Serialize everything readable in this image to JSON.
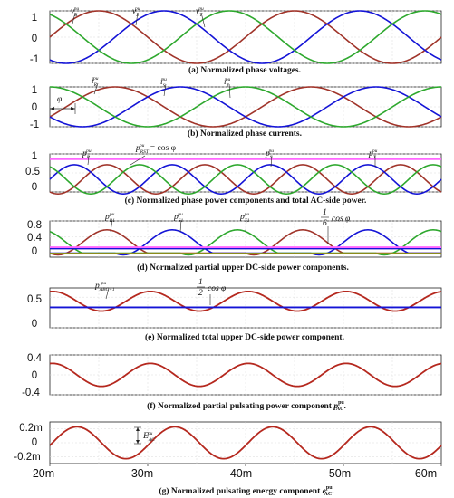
{
  "colors": {
    "red": "#a0342a",
    "blue": "#1414d6",
    "green": "#2ea82e",
    "magenta": "#ff66ff",
    "olive": "#8c8c1a",
    "pulse": "#b5281e"
  },
  "chart_data": [
    {
      "id": "a",
      "type": "line",
      "caption": "(a) Normalized phase voltages.",
      "ylim": [
        -1,
        1
      ],
      "yticks": [
        "1",
        "0",
        "-1"
      ],
      "ytick_values": [
        1,
        0,
        -1
      ],
      "xlim": [
        0.02,
        0.06
      ],
      "series": [
        {
          "name": "v_R^pu",
          "color": "#a0342a",
          "amplitude": 1,
          "phase_deg": 0
        },
        {
          "name": "v_S^pu",
          "color": "#1414d6",
          "amplitude": 1,
          "phase_deg": -120
        },
        {
          "name": "v_T^pu",
          "color": "#2ea82e",
          "amplitude": 1,
          "phase_deg": 120
        }
      ],
      "annotations": [
        "v_R^pu",
        "v_S^pu",
        "v_T^pu"
      ]
    },
    {
      "id": "b",
      "type": "line",
      "caption": "(b) Normalized phase currents.",
      "ylim": [
        -1,
        1
      ],
      "yticks": [
        "1",
        "0",
        "-1"
      ],
      "ytick_values": [
        1,
        0,
        -1
      ],
      "xlim": [
        0.02,
        0.06
      ],
      "phi_deg": 30,
      "series": [
        {
          "name": "i_R^pu",
          "color": "#a0342a",
          "amplitude": 1,
          "phase_deg": -30
        },
        {
          "name": "i_S^pu",
          "color": "#1414d6",
          "amplitude": 1,
          "phase_deg": -150
        },
        {
          "name": "i_T^pu",
          "color": "#2ea82e",
          "amplitude": 1,
          "phase_deg": 90
        }
      ],
      "annotations": [
        "i_R^pu",
        "i_S^pu",
        "i_T^pu",
        "φ"
      ]
    },
    {
      "id": "c",
      "type": "line",
      "caption": "(c) Normalized phase power components and total AC-side power.",
      "ylim": [
        0,
        1
      ],
      "yticks": [
        "1",
        "0.5",
        "0"
      ],
      "ytick_values": [
        1,
        0.5,
        0
      ],
      "xlim": [
        0.02,
        0.06
      ],
      "total_level": 0.866,
      "series": [
        {
          "name": "p_R^pu",
          "color": "#a0342a"
        },
        {
          "name": "p_S^pu",
          "color": "#1414d6"
        },
        {
          "name": "p_T^pu",
          "color": "#2ea82e"
        },
        {
          "name": "p_RST^pu = cos φ",
          "color": "#ff66ff"
        }
      ],
      "annotations": [
        "p_R^pu",
        "p_RST^pu = cos φ",
        "p_S^pu",
        "p_T^pu"
      ]
    },
    {
      "id": "d",
      "type": "line",
      "caption": "(d) Normalized partial upper DC-side power components.",
      "ylim": [
        -0.1,
        0.8
      ],
      "yticks": [
        "0.8",
        "0.4",
        "0"
      ],
      "ytick_values": [
        0.8,
        0.4,
        0
      ],
      "xlim": [
        0.02,
        0.06
      ],
      "mean_level": 0.1443,
      "series": [
        {
          "name": "p_R1^pu",
          "color": "#a0342a"
        },
        {
          "name": "p_S1^pu",
          "color": "#1414d6"
        },
        {
          "name": "p_T1^pu",
          "color": "#2ea82e"
        },
        {
          "name": "1/6 cos φ",
          "color": "#ff66ff"
        }
      ],
      "annotations": [
        "p_R1^pu",
        "p_S1^pu",
        "p_T1^pu",
        "1/6 cos φ"
      ]
    },
    {
      "id": "e",
      "type": "line",
      "caption": "(e) Normalized total upper DC-side power component.",
      "ylim": [
        0,
        0.65
      ],
      "yticks": [
        "0.5",
        "0"
      ],
      "ytick_values": [
        0.5,
        0
      ],
      "xlim": [
        0.02,
        0.06
      ],
      "mean_level": 0.433,
      "series": [
        {
          "name": "p_ABC+1^pu",
          "color": "#b5281e"
        },
        {
          "name": "1/2 cos φ",
          "color": "#1414d6"
        }
      ],
      "annotations": [
        "p_ABC+1^pu",
        "1/2 cos φ"
      ]
    },
    {
      "id": "f",
      "type": "line",
      "caption_text": "(f) Normalized partial pulsating power component",
      "caption_symbol": "p",
      "caption_sup": "pu",
      "caption_sub": "AC",
      "ylim": [
        -0.4,
        0.4
      ],
      "yticks": [
        "0.4",
        "0",
        "-0.4"
      ],
      "ytick_values": [
        0.4,
        0,
        -0.4
      ],
      "xlim": [
        0.02,
        0.06
      ],
      "series": [
        {
          "name": "pulsating power",
          "color": "#b5281e",
          "amplitude": 0.23
        }
      ]
    },
    {
      "id": "g",
      "type": "line",
      "caption_text": "(g) Normalized pulsating energy component",
      "caption_symbol": "e",
      "caption_sup": "pu",
      "caption_sub": "AC",
      "ylim": [
        -0.0003,
        0.0003
      ],
      "yticks": [
        "0.2m",
        "0",
        "-0.2m"
      ],
      "ytick_values": [
        0.0002,
        0,
        -0.0002
      ],
      "xlim": [
        0.02,
        0.06
      ],
      "xticks": [
        "20m",
        "30m",
        "40m",
        "50m",
        "60m"
      ],
      "xtick_values": [
        0.02,
        0.03,
        0.04,
        0.05,
        0.06
      ],
      "series": [
        {
          "name": "pulsating energy",
          "color": "#b5281e",
          "amplitude": 0.00023
        }
      ],
      "annotations": [
        "E_AC^pu"
      ]
    }
  ]
}
